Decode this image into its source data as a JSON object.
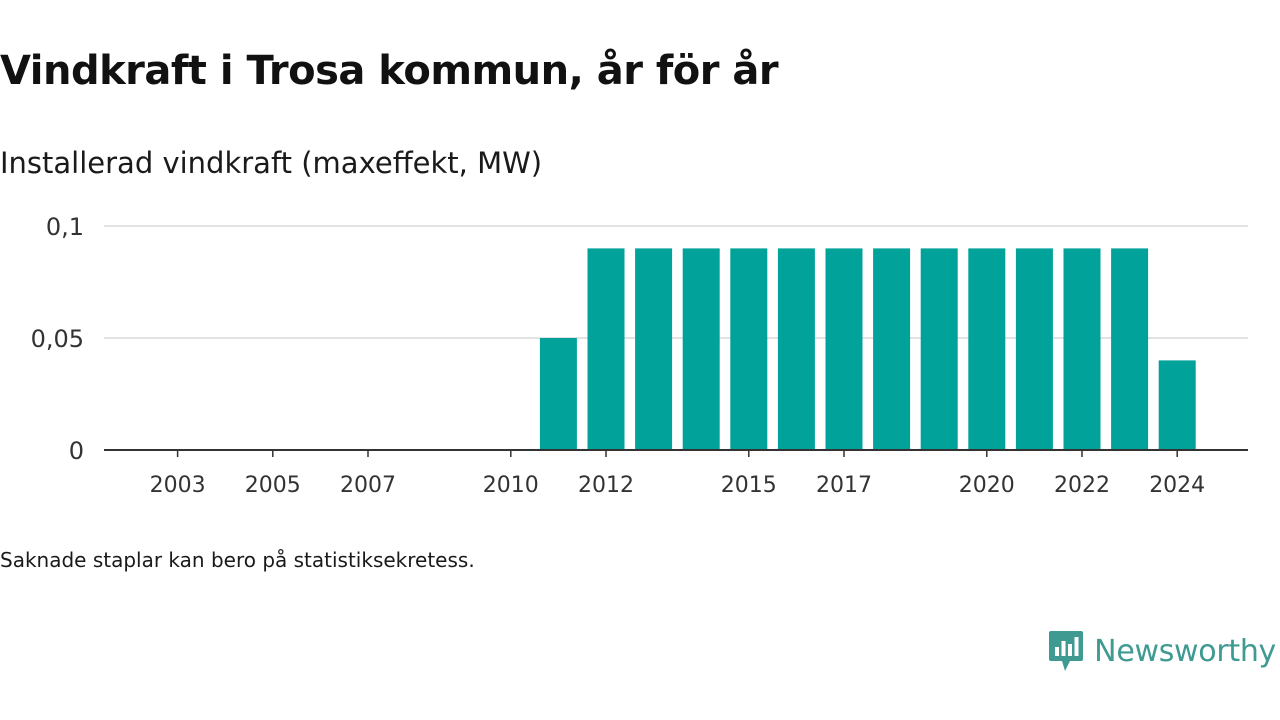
{
  "header": {
    "title": "Vindkraft i Trosa kommun, år för år",
    "subtitle": "Installerad vindkraft (maxeffekt, MW)"
  },
  "footer": {
    "note": "Saknade staplar kan bero på statistiksekretess.",
    "brand_name": "Newsworthy",
    "brand_icon": "newsworthy-logo-icon"
  },
  "colors": {
    "bar": "#00a29a",
    "grid": "#d9d9d9",
    "axis": "#333333",
    "brand": "#3f9a92"
  },
  "chart_data": {
    "type": "bar",
    "categories": [
      "2002",
      "2003",
      "2004",
      "2005",
      "2006",
      "2007",
      "2008",
      "2009",
      "2010",
      "2011",
      "2012",
      "2013",
      "2014",
      "2015",
      "2016",
      "2017",
      "2018",
      "2019",
      "2020",
      "2021",
      "2022",
      "2023",
      "2024"
    ],
    "values": [
      0,
      0,
      0,
      0,
      0,
      0,
      0,
      0,
      0,
      0.05,
      0.09,
      0.09,
      0.09,
      0.09,
      0.09,
      0.09,
      0.09,
      0.09,
      0.09,
      0.09,
      0.09,
      0.09,
      0.04
    ],
    "x_tick_labels": [
      "2003",
      "2005",
      "2007",
      "2010",
      "2012",
      "2015",
      "2017",
      "2020",
      "2022",
      "2024"
    ],
    "y_ticks": [
      {
        "value": 0,
        "label": "0"
      },
      {
        "value": 0.05,
        "label": "0,05"
      },
      {
        "value": 0.1,
        "label": "0,1"
      }
    ],
    "ylim": [
      0,
      0.1
    ],
    "grid": true,
    "title": "Vindkraft i Trosa kommun, år för år",
    "ylabel": "Installerad vindkraft (maxeffekt, MW)",
    "xlabel": ""
  }
}
